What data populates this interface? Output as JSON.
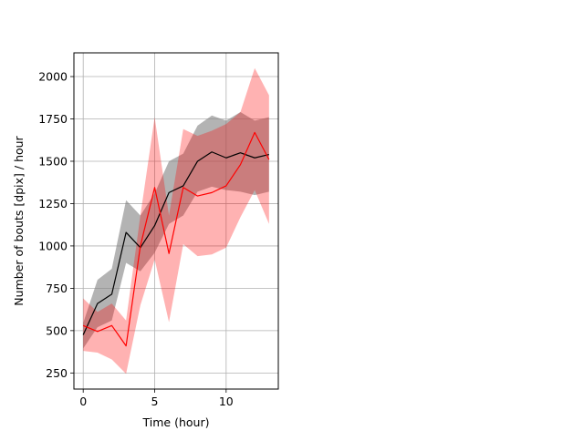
{
  "chart_data": {
    "type": "line",
    "title": "",
    "xlabel": "Time (hour)",
    "ylabel": "Number of bouts [dpix]  / hour",
    "xlim": [
      -0.65,
      13.65
    ],
    "ylim": [
      155,
      2140
    ],
    "xticks": [
      0,
      5,
      10
    ],
    "yticks": [
      250,
      500,
      750,
      1000,
      1250,
      1500,
      1750,
      2000
    ],
    "grid": true,
    "legend": "none",
    "x": [
      0,
      1,
      2,
      3,
      4,
      5,
      6,
      7,
      8,
      9,
      10,
      11,
      12,
      13
    ],
    "series": [
      {
        "color": "#000000",
        "band_color": "#808080",
        "band_opacity": 0.6,
        "values": [
          475,
          660,
          715,
          1080,
          990,
          1120,
          1315,
          1355,
          1500,
          1555,
          1520,
          1550,
          1520,
          1540
        ],
        "lower": [
          395,
          520,
          560,
          900,
          850,
          960,
          1130,
          1180,
          1320,
          1350,
          1330,
          1320,
          1300,
          1320
        ],
        "upper": [
          545,
          800,
          865,
          1270,
          1180,
          1310,
          1500,
          1545,
          1710,
          1770,
          1740,
          1790,
          1740,
          1760
        ]
      },
      {
        "color": "#ff0000",
        "band_color": "#ff0000",
        "band_opacity": 0.3,
        "values": [
          530,
          495,
          530,
          410,
          1000,
          1345,
          955,
          1345,
          1295,
          1315,
          1355,
          1480,
          1670,
          1510
        ],
        "lower": [
          380,
          370,
          330,
          245,
          650,
          920,
          550,
          1010,
          940,
          950,
          990,
          1170,
          1330,
          1130
        ],
        "upper": [
          690,
          610,
          660,
          560,
          1180,
          1760,
          1180,
          1690,
          1650,
          1680,
          1720,
          1790,
          2050,
          1890
        ]
      }
    ]
  }
}
